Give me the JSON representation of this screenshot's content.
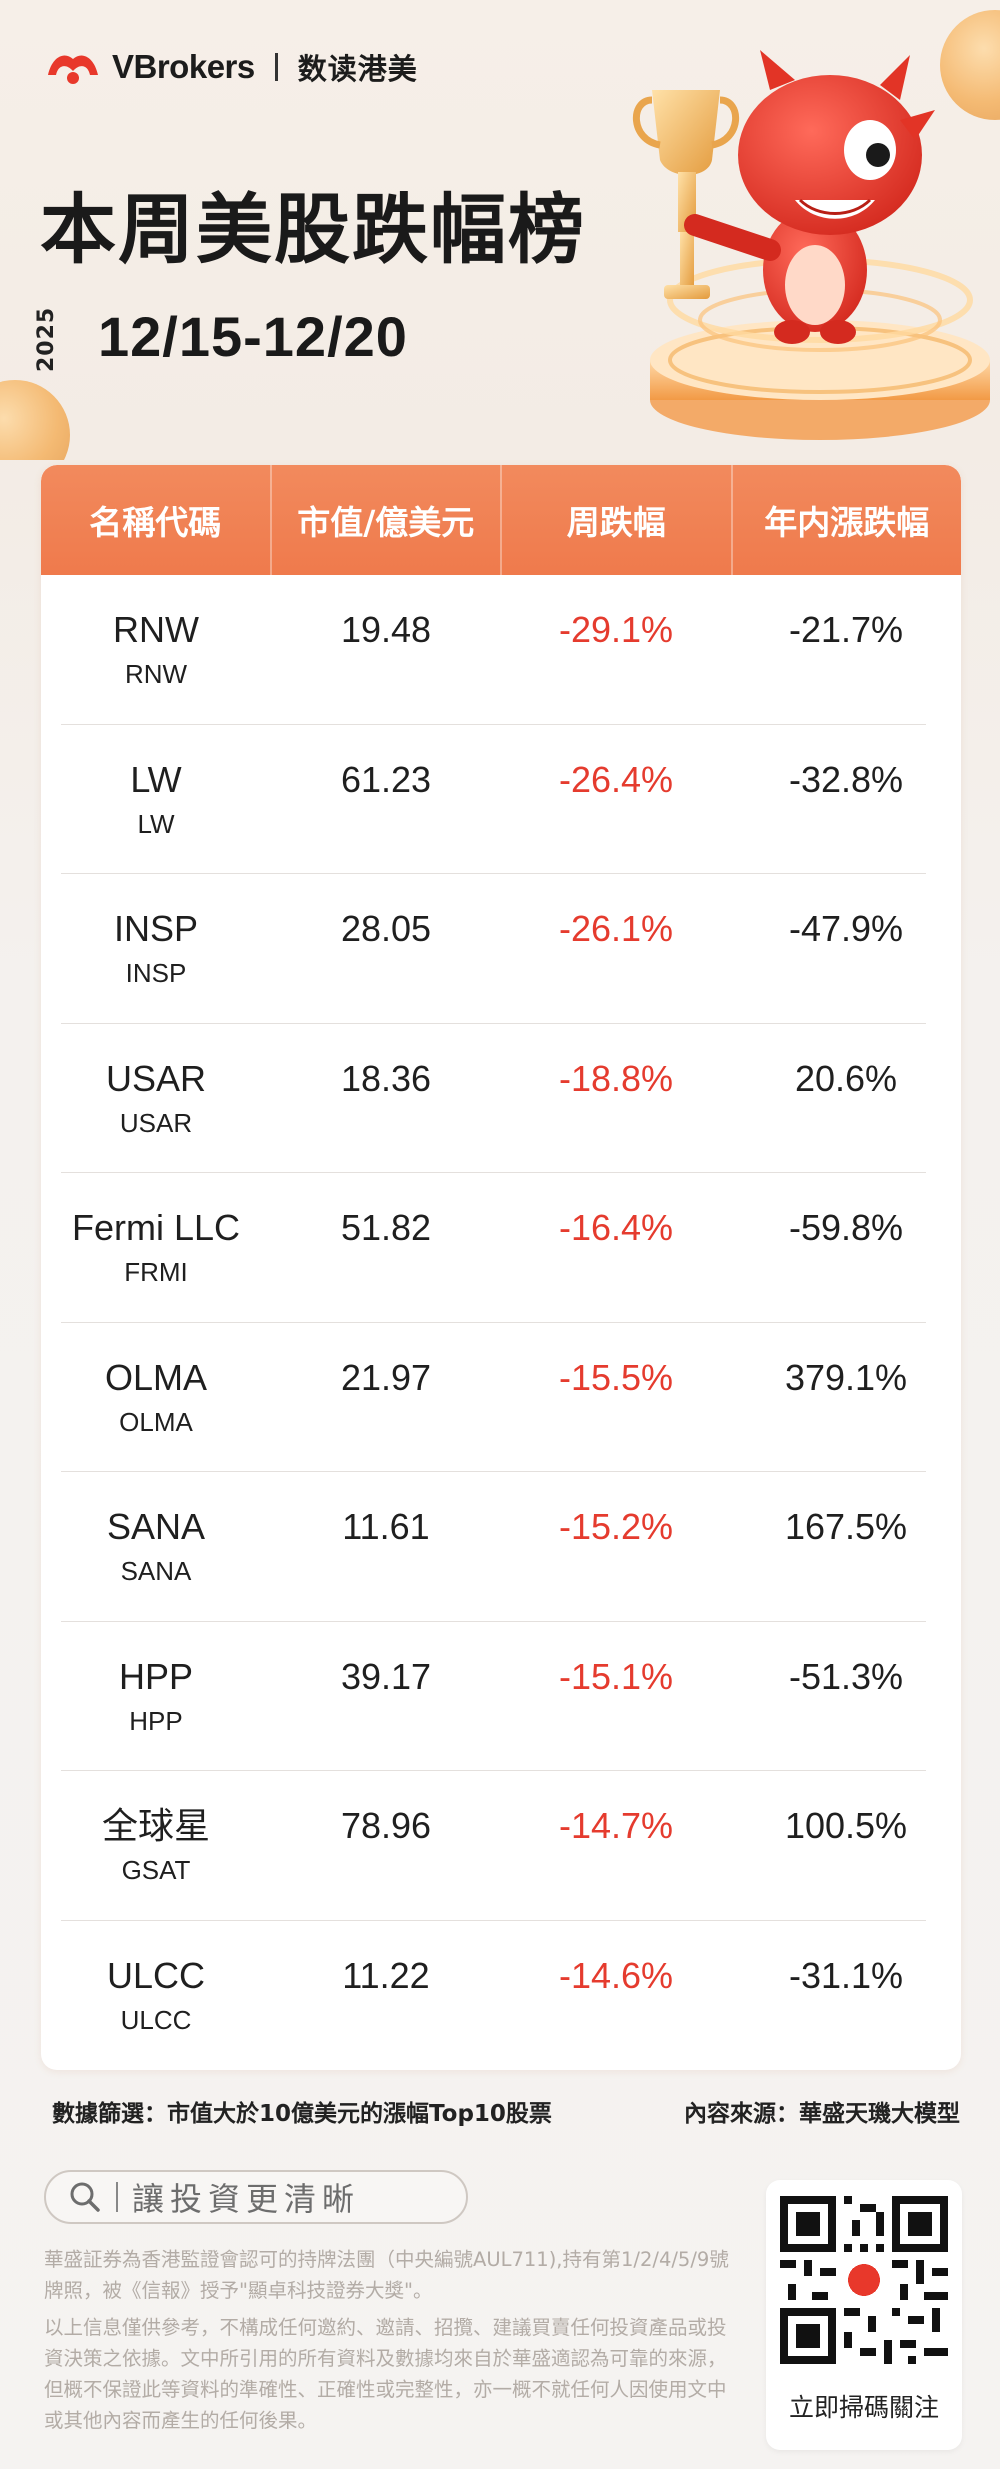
{
  "header": {
    "brand": "VBrokers",
    "brand_sub": "数读港美",
    "title": "本周美股跌幅榜",
    "year": "2025",
    "date_range": "12/15-12/20"
  },
  "table": {
    "headers": [
      "名稱代碼",
      "市值/億美元",
      "周跌幅",
      "年内漲跌幅"
    ],
    "rows": [
      {
        "name": "RNW",
        "code": "RNW",
        "market_cap": "19.48",
        "weekly_change": "-29.1%",
        "ytd_change": "-21.7%"
      },
      {
        "name": "LW",
        "code": "LW",
        "market_cap": "61.23",
        "weekly_change": "-26.4%",
        "ytd_change": "-32.8%"
      },
      {
        "name": "INSP",
        "code": "INSP",
        "market_cap": "28.05",
        "weekly_change": "-26.1%",
        "ytd_change": "-47.9%"
      },
      {
        "name": "USAR",
        "code": "USAR",
        "market_cap": "18.36",
        "weekly_change": "-18.8%",
        "ytd_change": "20.6%"
      },
      {
        "name": "Fermi LLC",
        "code": "FRMI",
        "market_cap": "51.82",
        "weekly_change": "-16.4%",
        "ytd_change": "-59.8%"
      },
      {
        "name": "OLMA",
        "code": "OLMA",
        "market_cap": "21.97",
        "weekly_change": "-15.5%",
        "ytd_change": "379.1%"
      },
      {
        "name": "SANA",
        "code": "SANA",
        "market_cap": "11.61",
        "weekly_change": "-15.2%",
        "ytd_change": "167.5%"
      },
      {
        "name": "HPP",
        "code": "HPP",
        "market_cap": "39.17",
        "weekly_change": "-15.1%",
        "ytd_change": "-51.3%"
      },
      {
        "name": "全球星",
        "code": "GSAT",
        "market_cap": "78.96",
        "weekly_change": "-14.7%",
        "ytd_change": "100.5%"
      },
      {
        "name": "ULCC",
        "code": "ULCC",
        "market_cap": "11.22",
        "weekly_change": "-14.6%",
        "ytd_change": "-31.1%"
      }
    ]
  },
  "footer": {
    "filter_note": "數據篩選：市值大於10億美元的漲幅Top10股票",
    "source_note": "內容來源：華盛天璣大模型",
    "search_text": "讓投資更清晰",
    "search_icon": "search-icon",
    "disclaimer_1": "華盛証券為香港監證會認可的持牌法團（中央編號AUL711),持有第1/2/4/5/9號牌照，被《信報》授予\"顯卓科技證券大獎\"。",
    "disclaimer_2": "以上信息僅供參考，不構成任何邀約、邀請、招攬、建議買賣任何投資產品或投資決策之依據。文中所引用的所有資料及數據均來自於華盛適認為可靠的來源，但概不保證此等資料的準確性、正確性或完整性，亦一概不就任何人因使用文中或其他內容而產生的任何後果。",
    "qr_label": "立即掃碼關注"
  },
  "colors": {
    "accent": "#ef7a4c",
    "negative": "#e53b2e",
    "brand_red": "#e8382b"
  }
}
